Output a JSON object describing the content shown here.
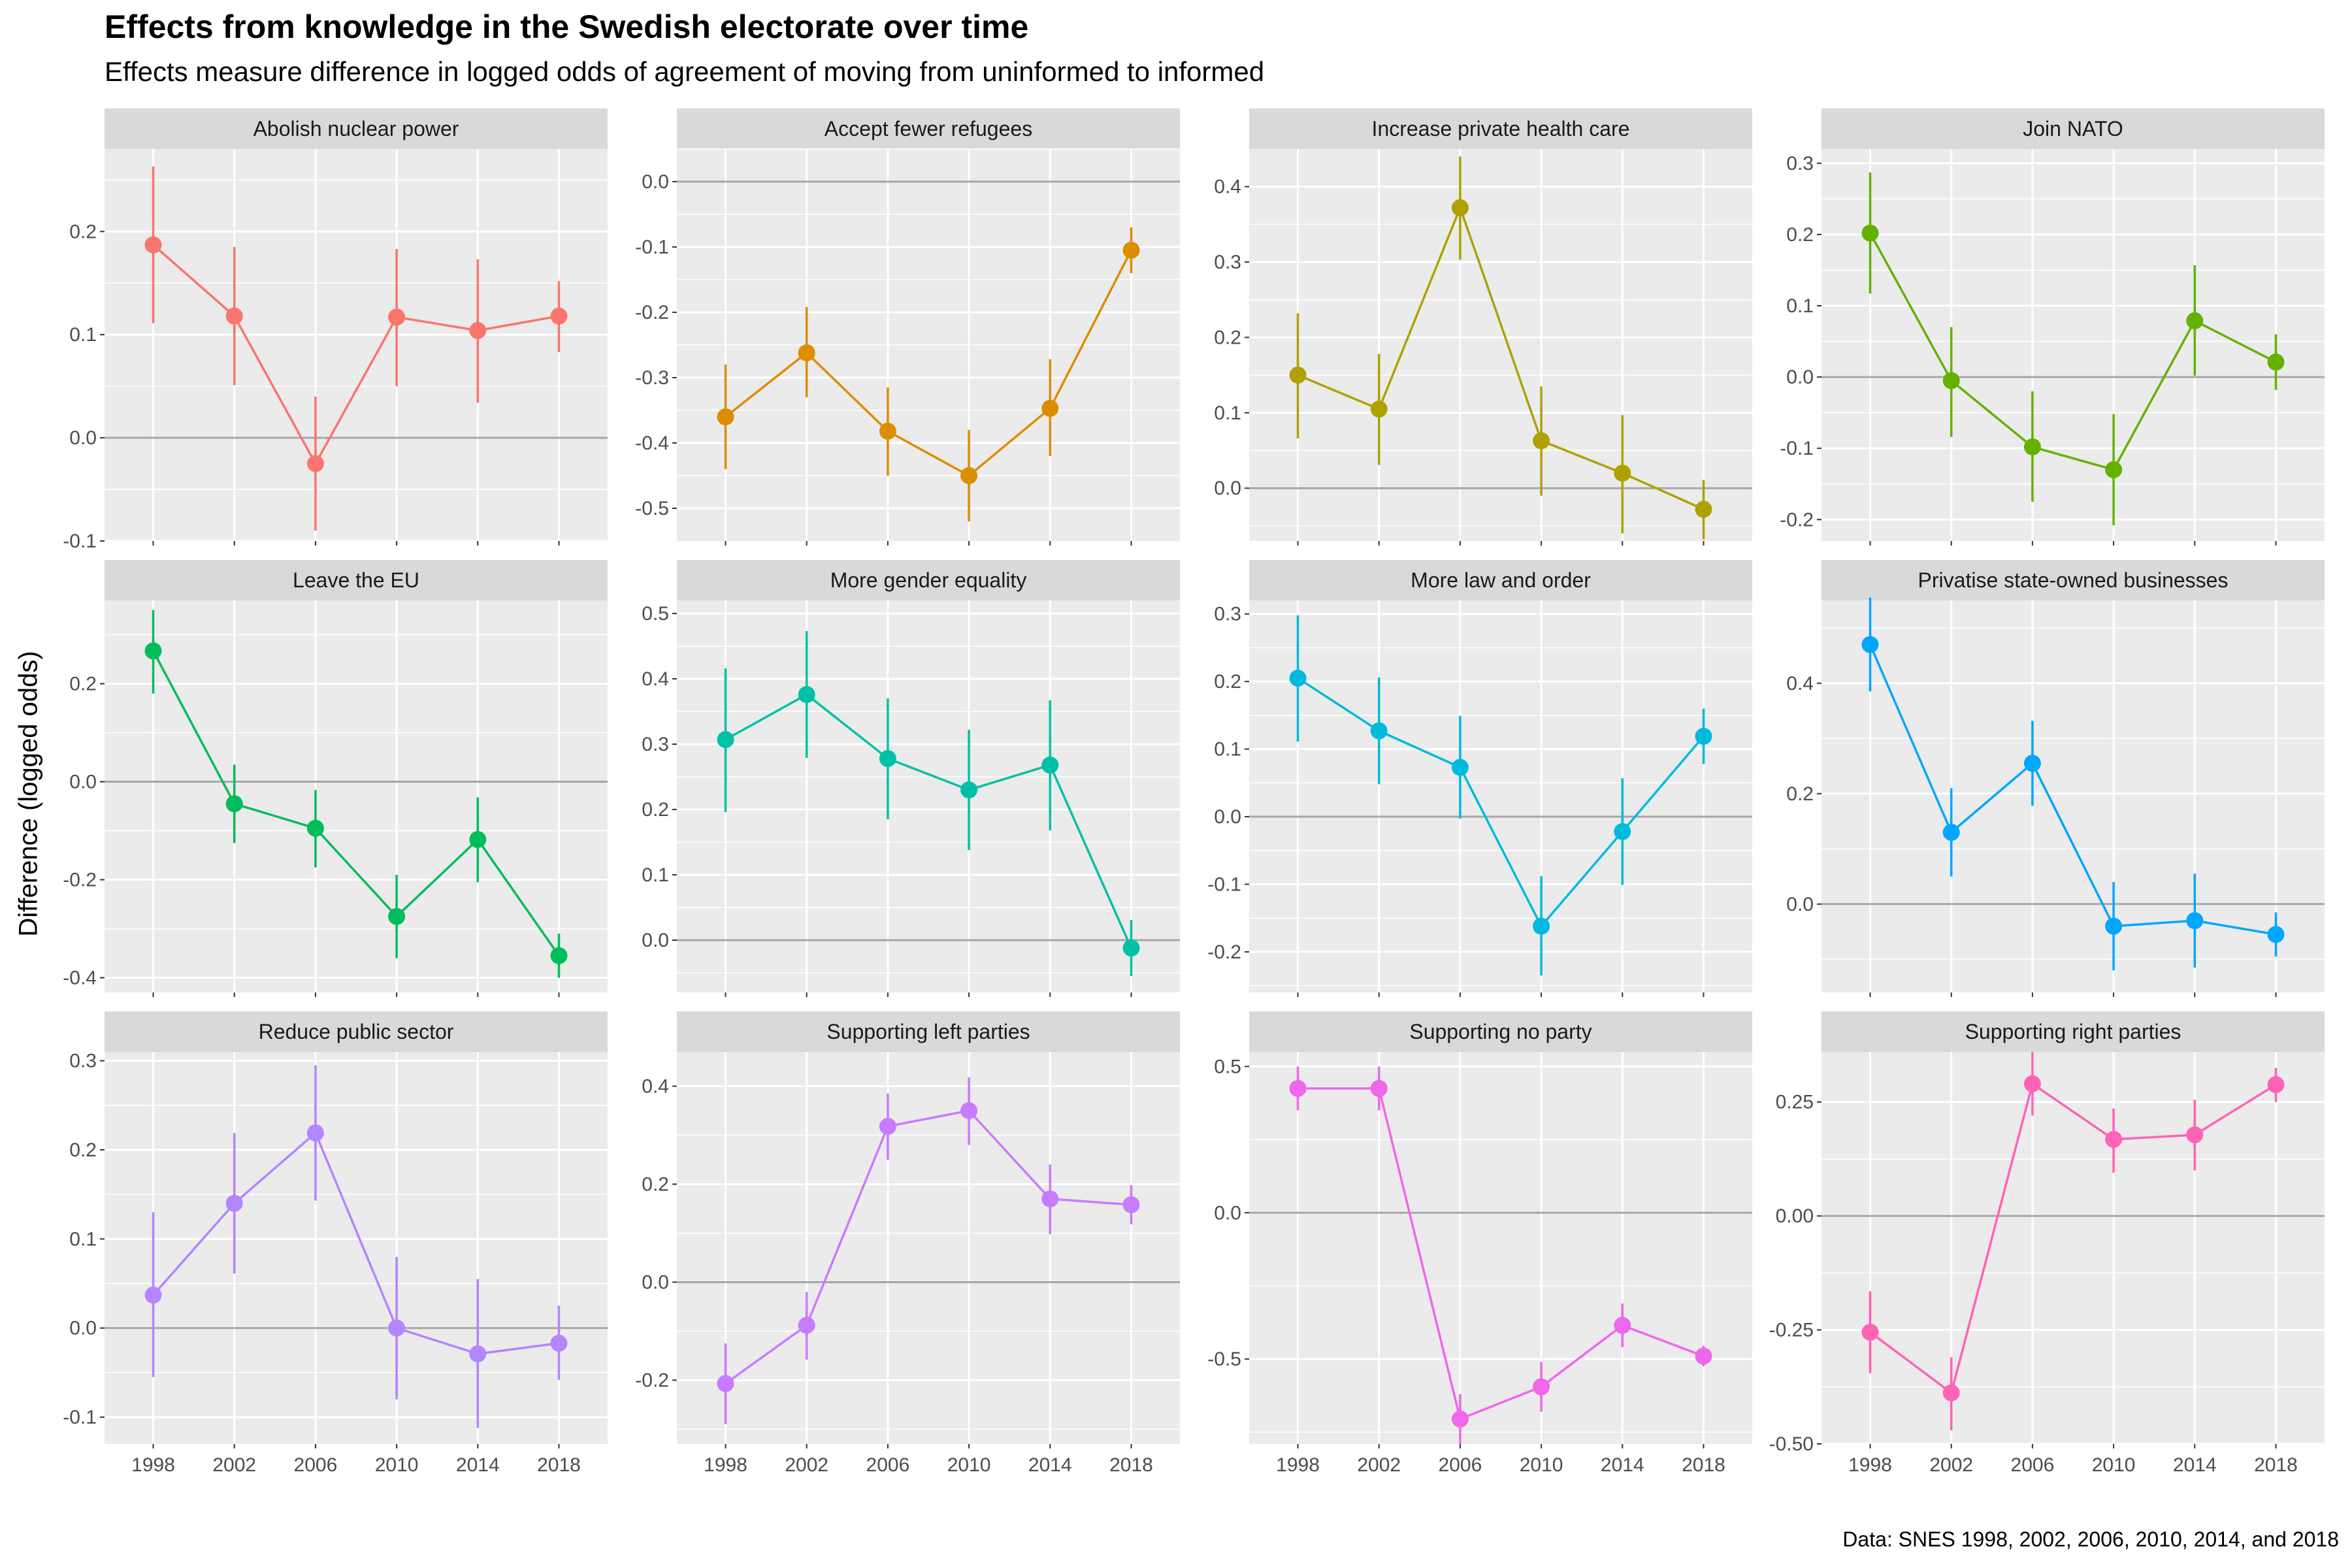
{
  "title": "Effects from knowledge in the Swedish electorate over time",
  "subtitle": "Effects measure difference in logged odds of agreement of moving from uninformed to informed",
  "ylabel": "Difference (logged odds)",
  "caption": "Data: SNES 1998, 2002, 2006, 2010, 2014, and 2018",
  "chart_data": {
    "type": "line",
    "x": [
      1998,
      2002,
      2006,
      2010,
      2014,
      2018
    ],
    "x_ticks": [
      "1998",
      "2002",
      "2006",
      "2010",
      "2014",
      "2018"
    ],
    "panels": [
      {
        "strip": "Abolish nuclear power",
        "color": "#F8766D",
        "ylim": [
          -0.1,
          0.28
        ],
        "yticks": [
          -0.1,
          0.0,
          0.1,
          0.2
        ],
        "ytick_labels": [
          "-0.1",
          "0.0",
          "0.1",
          "0.2"
        ],
        "values": [
          0.187,
          0.118,
          -0.025,
          0.117,
          0.104,
          0.118
        ],
        "lower": [
          0.111,
          0.051,
          -0.09,
          0.05,
          0.034,
          0.083
        ],
        "upper": [
          0.263,
          0.185,
          0.04,
          0.183,
          0.173,
          0.152
        ]
      },
      {
        "strip": "Accept fewer refugees",
        "color": "#DB8E00",
        "ylim": [
          -0.55,
          0.05
        ],
        "yticks": [
          -0.5,
          -0.4,
          -0.3,
          -0.2,
          -0.1,
          0.0
        ],
        "ytick_labels": [
          "-0.5",
          "-0.4",
          "-0.3",
          "-0.2",
          "-0.1",
          "0.0"
        ],
        "values": [
          -0.36,
          -0.262,
          -0.382,
          -0.45,
          -0.347,
          -0.105
        ],
        "lower": [
          -0.44,
          -0.33,
          -0.45,
          -0.52,
          -0.42,
          -0.14
        ],
        "upper": [
          -0.28,
          -0.192,
          -0.315,
          -0.38,
          -0.272,
          -0.07
        ]
      },
      {
        "strip": "Increase private health care",
        "color": "#AEA200",
        "ylim": [
          -0.07,
          0.45
        ],
        "yticks": [
          0.0,
          0.1,
          0.2,
          0.3,
          0.4
        ],
        "ytick_labels": [
          "0.0",
          "0.1",
          "0.2",
          "0.3",
          "0.4"
        ],
        "values": [
          0.15,
          0.105,
          0.372,
          0.063,
          0.02,
          -0.028
        ],
        "lower": [
          0.066,
          0.031,
          0.303,
          -0.01,
          -0.06,
          -0.068
        ],
        "upper": [
          0.232,
          0.178,
          0.44,
          0.135,
          0.097,
          0.011
        ]
      },
      {
        "strip": "Join NATO",
        "color": "#64B200",
        "ylim": [
          -0.23,
          0.32
        ],
        "yticks": [
          -0.2,
          -0.1,
          0.0,
          0.1,
          0.2,
          0.3
        ],
        "ytick_labels": [
          "-0.2",
          "-0.1",
          "0.0",
          "0.1",
          "0.2",
          "0.3"
        ],
        "values": [
          0.202,
          -0.005,
          -0.098,
          -0.13,
          0.079,
          0.021
        ],
        "lower": [
          0.117,
          -0.084,
          -0.175,
          -0.208,
          0.002,
          -0.018
        ],
        "upper": [
          0.287,
          0.07,
          -0.02,
          -0.052,
          0.157,
          0.06
        ]
      },
      {
        "strip": "Leave the EU",
        "color": "#00BD5C",
        "ylim": [
          -0.43,
          0.37
        ],
        "yticks": [
          -0.4,
          -0.2,
          0.0,
          0.2
        ],
        "ytick_labels": [
          "-0.4",
          "-0.2",
          "0.0",
          "0.2"
        ],
        "values": [
          0.267,
          -0.045,
          -0.095,
          -0.275,
          -0.118,
          -0.355
        ],
        "lower": [
          0.18,
          -0.125,
          -0.175,
          -0.36,
          -0.205,
          -0.4
        ],
        "upper": [
          0.35,
          0.035,
          -0.017,
          -0.19,
          -0.032,
          -0.31
        ]
      },
      {
        "strip": "More gender equality",
        "color": "#00C1A7",
        "ylim": [
          -0.08,
          0.52
        ],
        "yticks": [
          0.0,
          0.1,
          0.2,
          0.3,
          0.4,
          0.5
        ],
        "ytick_labels": [
          "0.0",
          "0.1",
          "0.2",
          "0.3",
          "0.4",
          "0.5"
        ],
        "values": [
          0.307,
          0.376,
          0.278,
          0.23,
          0.268,
          -0.012
        ],
        "lower": [
          0.196,
          0.279,
          0.185,
          0.138,
          0.168,
          -0.055
        ],
        "upper": [
          0.416,
          0.473,
          0.37,
          0.322,
          0.367,
          0.031
        ]
      },
      {
        "strip": "More law and order",
        "color": "#00BADE",
        "ylim": [
          -0.26,
          0.32
        ],
        "yticks": [
          -0.2,
          -0.1,
          0.0,
          0.1,
          0.2,
          0.3
        ],
        "ytick_labels": [
          "-0.2",
          "-0.1",
          "0.0",
          "0.1",
          "0.2",
          "0.3"
        ],
        "values": [
          0.205,
          0.127,
          0.073,
          -0.162,
          -0.022,
          0.119
        ],
        "lower": [
          0.111,
          0.048,
          -0.003,
          -0.235,
          -0.101,
          0.078
        ],
        "upper": [
          0.298,
          0.206,
          0.149,
          -0.088,
          0.057,
          0.16
        ]
      },
      {
        "strip": "Privatise state-owned businesses",
        "color": "#00A6FF",
        "ylim": [
          -0.16,
          0.55
        ],
        "yticks": [
          0.0,
          0.2,
          0.4
        ],
        "ytick_labels": [
          "0.0",
          "0.2",
          "0.4"
        ],
        "values": [
          0.47,
          0.13,
          0.255,
          -0.04,
          -0.03,
          -0.055
        ],
        "lower": [
          0.385,
          0.05,
          0.178,
          -0.12,
          -0.115,
          -0.095
        ],
        "upper": [
          0.555,
          0.21,
          0.332,
          0.04,
          0.055,
          -0.015
        ]
      },
      {
        "strip": "Reduce public sector",
        "color": "#B385FF",
        "ylim": [
          -0.13,
          0.31
        ],
        "yticks": [
          -0.1,
          0.0,
          0.1,
          0.2,
          0.3
        ],
        "ytick_labels": [
          "-0.1",
          "0.0",
          "0.1",
          "0.2",
          "0.3"
        ],
        "values": [
          0.037,
          0.14,
          0.219,
          0.0,
          -0.029,
          -0.017
        ],
        "lower": [
          -0.055,
          0.061,
          0.143,
          -0.08,
          -0.112,
          -0.058
        ],
        "upper": [
          0.13,
          0.219,
          0.295,
          0.08,
          0.055,
          0.025
        ]
      },
      {
        "strip": "Supporting left parties",
        "color": "#C77CFF",
        "ylim": [
          -0.33,
          0.47
        ],
        "yticks": [
          -0.2,
          0.0,
          0.2,
          0.4
        ],
        "ytick_labels": [
          "-0.2",
          "0.0",
          "0.2",
          "0.4"
        ],
        "values": [
          -0.207,
          -0.088,
          0.318,
          0.35,
          0.17,
          0.158
        ],
        "lower": [
          -0.29,
          -0.158,
          0.25,
          0.28,
          0.098,
          0.118
        ],
        "upper": [
          -0.125,
          -0.02,
          0.385,
          0.418,
          0.24,
          0.198
        ]
      },
      {
        "strip": "Supporting no party",
        "color": "#EF67EB",
        "ylim": [
          -0.79,
          0.55
        ],
        "yticks": [
          -0.5,
          0.0,
          0.5
        ],
        "ytick_labels": [
          "-0.5",
          "0.0",
          "0.5"
        ],
        "values": [
          0.425,
          0.425,
          -0.705,
          -0.595,
          -0.385,
          -0.49
        ],
        "lower": [
          0.35,
          0.35,
          -0.79,
          -0.68,
          -0.46,
          -0.525
        ],
        "upper": [
          0.5,
          0.5,
          -0.62,
          -0.51,
          -0.31,
          -0.455
        ]
      },
      {
        "strip": "Supporting right parties",
        "color": "#FF63B6",
        "ylim": [
          -0.5,
          0.36
        ],
        "yticks": [
          -0.5,
          -0.25,
          0.0,
          0.25
        ],
        "ytick_labels": [
          "-0.50",
          "-0.25",
          "0.00",
          "0.25"
        ],
        "values": [
          -0.255,
          -0.388,
          0.29,
          0.168,
          0.178,
          0.288
        ],
        "lower": [
          -0.345,
          -0.47,
          0.22,
          0.095,
          0.1,
          0.25
        ],
        "upper": [
          -0.165,
          -0.31,
          0.36,
          0.236,
          0.255,
          0.325
        ]
      }
    ]
  }
}
